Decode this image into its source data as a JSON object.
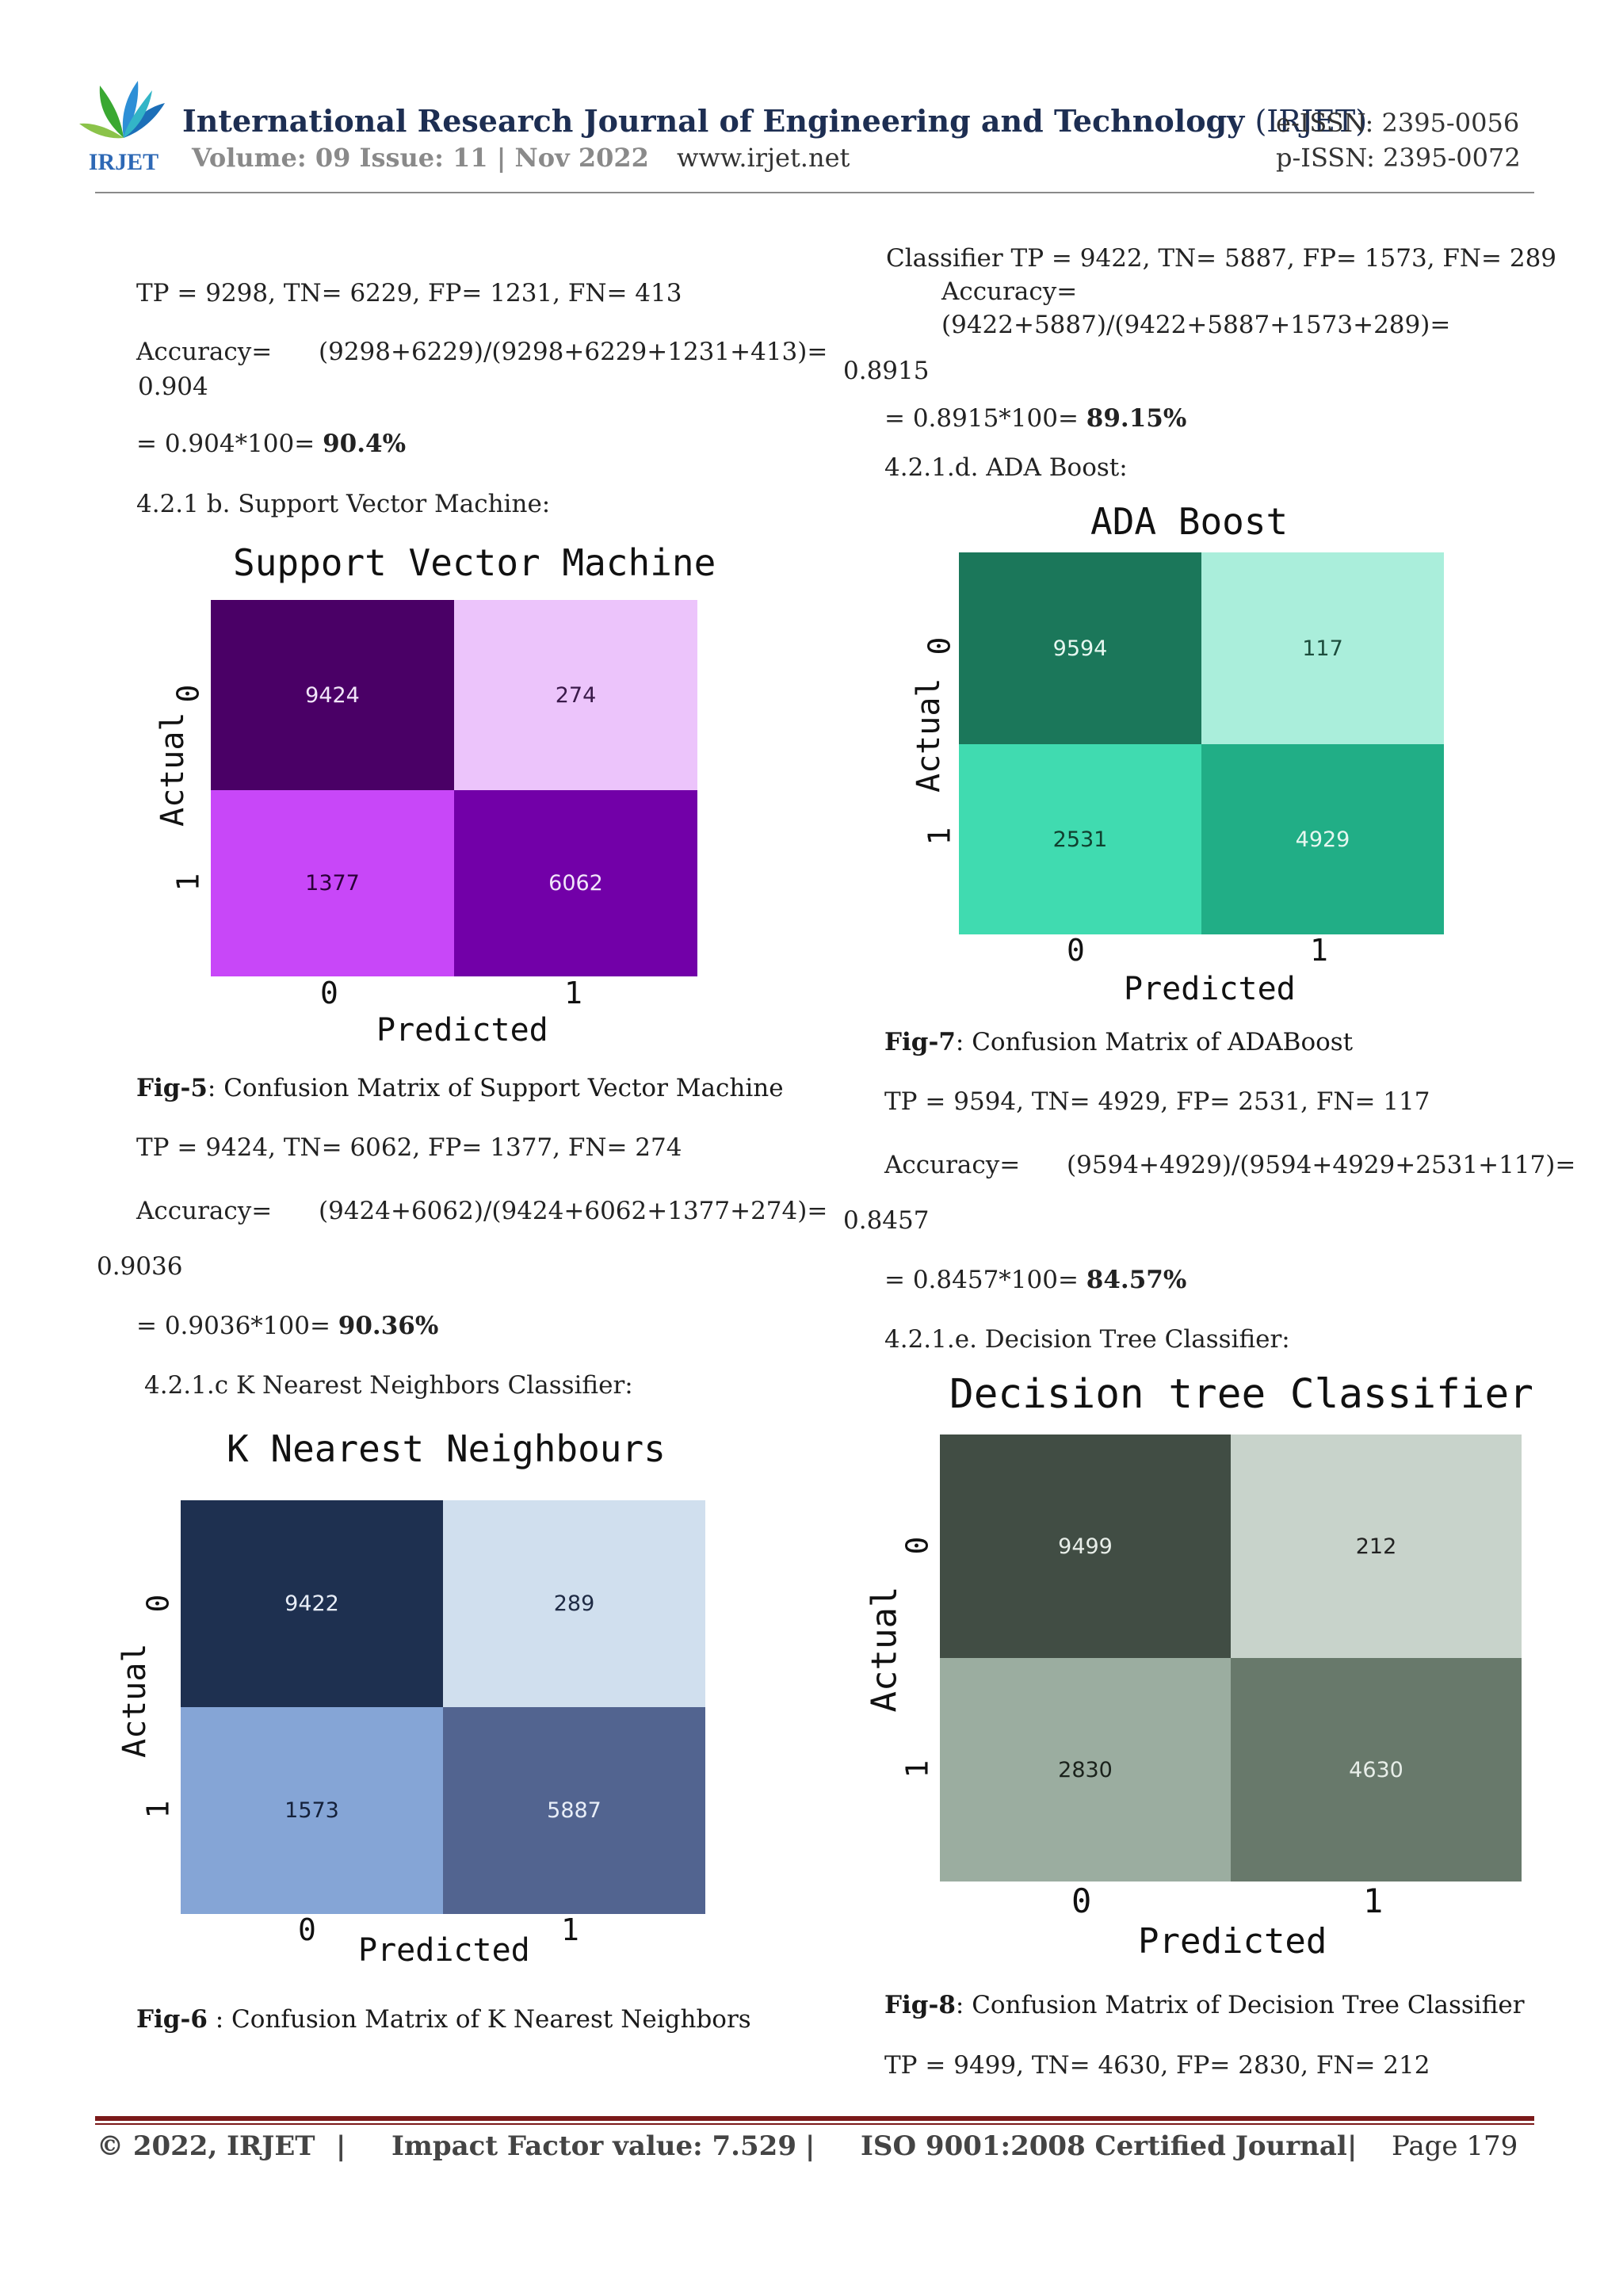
{
  "header": {
    "logo_text": "IRJET",
    "journal_name": "International Research Journal of Engineering and Technology",
    "journal_abbr": "(IRJET)",
    "volume": "Volume: 09 Issue: 11 | Nov 2022",
    "website": "www.irjet.net",
    "eissn": "e-ISSN: 2395-0056",
    "pissn": "p-ISSN: 2395-0072",
    "colors": {
      "title": "#1d2e52",
      "rule": "#8a8a8a"
    }
  },
  "left": {
    "rf_metrics": "TP = 9298, TN= 6229, FP= 1231, FN= 413",
    "rf_acc_label": "Accuracy=",
    "rf_acc_formula": "(9298+6229)/(9298+6229+1231+413)=",
    "rf_acc_value": "0.904",
    "rf_pct_expr": "= 0.904*100= ",
    "rf_pct": "90.4%",
    "svm_heading": "4.2.1 b. Support Vector Machine:",
    "fig5_label": "Fig-5",
    "fig5_caption": ": Confusion Matrix of Support Vector Machine",
    "svm_metrics": "TP = 9424, TN= 6062, FP= 1377, FN= 274",
    "svm_acc_label": "Accuracy=",
    "svm_acc_formula": "(9424+6062)/(9424+6062+1377+274)=",
    "svm_acc_value": "0.9036",
    "svm_pct_expr": "= 0.9036*100= ",
    "svm_pct": "90.36%",
    "knn_heading": "4.2.1.c K Nearest Neighbors Classifier:",
    "fig6_label": "Fig-6",
    "fig6_caption": " : Confusion Matrix of K Nearest Neighbors"
  },
  "right": {
    "knn_metrics": "Classifier  TP  =  9422,  TN=  5887,  FP=  1573,  FN=  289",
    "knn_acc_label": "Accuracy=",
    "knn_acc_formula": "(9422+5887)/(9422+5887+1573+289)=",
    "knn_acc_value": "0.8915",
    "knn_pct_expr": "= 0.8915*100= ",
    "knn_pct": "89.15%",
    "ada_heading": "4.2.1.d. ADA Boost:",
    "fig7_label": "Fig-7",
    "fig7_caption": ": Confusion Matrix of ADABoost",
    "ada_metrics": "TP = 9594, TN= 4929, FP= 2531, FN= 117",
    "ada_acc_label": "Accuracy=",
    "ada_acc_formula": "(9594+4929)/(9594+4929+2531+117)=",
    "ada_acc_value": "0.8457",
    "ada_pct_expr": "= 0.8457*100= ",
    "ada_pct": "84.57%",
    "dt_heading": "4.2.1.e. Decision Tree Classifier:",
    "fig8_label": "Fig-8",
    "fig8_caption": ": Confusion Matrix of Decision Tree Classifier",
    "dt_metrics": "TP = 9499, TN= 4630, FP= 2830, FN= 212"
  },
  "chart_data": [
    {
      "type": "heatmap",
      "title": "Support Vector Machine",
      "xlabel": "Predicted",
      "ylabel": "Actual",
      "x_ticks": [
        "0",
        "1"
      ],
      "y_ticks": [
        "0",
        "1"
      ],
      "values": [
        [
          9424,
          274
        ],
        [
          1377,
          6062
        ]
      ],
      "colors": [
        [
          "#4a0066",
          "#ecc4fb"
        ],
        [
          "#c847f8",
          "#7200a8"
        ]
      ],
      "text_colors": [
        [
          "#f2e6fa",
          "#3a1a4a"
        ],
        [
          "#2a0038",
          "#f2e6fa"
        ]
      ]
    },
    {
      "type": "heatmap",
      "title": "K Nearest Neighbours",
      "xlabel": "Predicted",
      "ylabel": "Actual",
      "x_ticks": [
        "0",
        "1"
      ],
      "y_ticks": [
        "0",
        "1"
      ],
      "values": [
        [
          9422,
          289
        ],
        [
          1573,
          5887
        ]
      ],
      "colors": [
        [
          "#1e3050",
          "#d0dfee"
        ],
        [
          "#85a5d6",
          "#526490"
        ]
      ],
      "text_colors": [
        [
          "#e8eef8",
          "#1e2a44"
        ],
        [
          "#15213a",
          "#e8eef8"
        ]
      ]
    },
    {
      "type": "heatmap",
      "title": "ADA Boost",
      "xlabel": "Predicted",
      "ylabel": "Actual",
      "x_ticks": [
        "0",
        "1"
      ],
      "y_ticks": [
        "0",
        "1"
      ],
      "values": [
        [
          9594,
          117
        ],
        [
          2531,
          4929
        ]
      ],
      "colors": [
        [
          "#1b775a",
          "#aaeedb"
        ],
        [
          "#40dbb0",
          "#21ae86"
        ]
      ],
      "text_colors": [
        [
          "#e6f7f0",
          "#1d4d3d"
        ],
        [
          "#10402f",
          "#e6f7f0"
        ]
      ]
    },
    {
      "type": "heatmap",
      "title": "Decision tree Classifier",
      "xlabel": "Predicted",
      "ylabel": "Actual",
      "x_ticks": [
        "0",
        "1"
      ],
      "y_ticks": [
        "0",
        "1"
      ],
      "values": [
        [
          9499,
          212
        ],
        [
          2830,
          4630
        ]
      ],
      "colors": [
        [
          "#414d44",
          "#c8d3cb"
        ],
        [
          "#9bada0",
          "#68796b"
        ]
      ],
      "text_colors": [
        [
          "#e8eee9",
          "#222"
        ],
        [
          "#1b221c",
          "#e8eee9"
        ]
      ]
    }
  ],
  "footer": {
    "copyright": "© 2022, IRJET",
    "sep": "|",
    "impact": "Impact Factor value: 7.529",
    "iso": "ISO 9001:2008 Certified Journal",
    "page": "Page 179",
    "rule_color": "#7b1a1a"
  }
}
